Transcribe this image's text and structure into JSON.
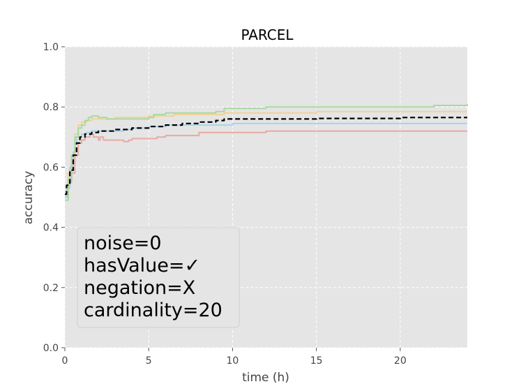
{
  "chart_data": {
    "type": "line",
    "title": "PARCEL",
    "xlabel": "time (h)",
    "ylabel": "accuracy",
    "xlim": [
      0,
      24
    ],
    "ylim": [
      0.0,
      1.0
    ],
    "xticks": [
      0,
      5,
      10,
      15,
      20
    ],
    "yticks": [
      0.0,
      0.2,
      0.4,
      0.6,
      0.8,
      1.0
    ],
    "xtick_labels": [
      "0",
      "5",
      "10",
      "15",
      "20"
    ],
    "ytick_labels": [
      "0.0",
      "0.2",
      "0.4",
      "0.6",
      "0.8",
      "1.0"
    ],
    "grid": true,
    "style": "ggplot",
    "annotation": [
      "noise=0",
      "hasValue=✓",
      "negation=X",
      "cardinality=20"
    ],
    "series": [
      {
        "color": "#e8a09a",
        "opacity": 0.85,
        "dashed": false,
        "x": [
          0,
          0.2,
          0.4,
          0.6,
          0.8,
          1.0,
          1.2,
          1.5,
          1.7,
          2.0,
          2.1,
          2.3,
          3.0,
          3.5,
          3.8,
          4.0,
          5.0,
          5.5,
          6.0,
          7.0,
          7.9,
          8.0,
          10.0,
          12.0,
          24.0
        ],
        "y": [
          0.5,
          0.55,
          0.58,
          0.64,
          0.68,
          0.69,
          0.7,
          0.71,
          0.7,
          0.69,
          0.7,
          0.69,
          0.69,
          0.685,
          0.69,
          0.695,
          0.695,
          0.7,
          0.705,
          0.705,
          0.705,
          0.715,
          0.715,
          0.72,
          0.72
        ]
      },
      {
        "color": "#9fd0ef",
        "opacity": 0.85,
        "dashed": false,
        "x": [
          0,
          0.1,
          0.3,
          0.5,
          0.6,
          0.7,
          0.9,
          1.0,
          1.3,
          1.6,
          2.0,
          2.5,
          3.5,
          4.0,
          5.0,
          6.0,
          8.0,
          10.0,
          15.0,
          24.0
        ],
        "y": [
          0.5,
          0.53,
          0.6,
          0.65,
          0.68,
          0.7,
          0.7,
          0.71,
          0.715,
          0.72,
          0.72,
          0.72,
          0.725,
          0.73,
          0.735,
          0.74,
          0.74,
          0.745,
          0.745,
          0.745
        ]
      },
      {
        "color": "#f5cf8a",
        "opacity": 0.85,
        "dashed": false,
        "x": [
          0,
          0.2,
          0.4,
          0.6,
          0.8,
          1.0,
          1.3,
          1.6,
          2.0,
          3.0,
          4.0,
          5.0,
          5.5,
          6.5,
          8.0,
          9.5,
          12.0,
          15.0,
          24.0
        ],
        "y": [
          0.52,
          0.58,
          0.64,
          0.71,
          0.74,
          0.75,
          0.755,
          0.76,
          0.76,
          0.765,
          0.765,
          0.77,
          0.77,
          0.775,
          0.775,
          0.78,
          0.78,
          0.785,
          0.785
        ]
      },
      {
        "color": "#a2d89a",
        "opacity": 0.9,
        "dashed": false,
        "x": [
          0,
          0.2,
          0.4,
          0.6,
          0.8,
          1.0,
          1.2,
          1.4,
          1.6,
          2.0,
          2.5,
          3.0,
          4.0,
          5.0,
          5.3,
          6.0,
          7.0,
          9.0,
          9.5,
          12.0,
          20.0,
          22.0,
          24.0
        ],
        "y": [
          0.49,
          0.56,
          0.64,
          0.7,
          0.73,
          0.74,
          0.755,
          0.765,
          0.77,
          0.765,
          0.76,
          0.76,
          0.76,
          0.765,
          0.775,
          0.78,
          0.78,
          0.785,
          0.795,
          0.8,
          0.8,
          0.805,
          0.81
        ]
      },
      {
        "color": "#000000",
        "opacity": 1,
        "dashed": true,
        "x": [
          0,
          0.1,
          0.3,
          0.5,
          0.7,
          0.9,
          1.2,
          1.6,
          2.0,
          3.0,
          4.0,
          5.0,
          6.0,
          7.0,
          8.0,
          9.0,
          9.5,
          12.0,
          15.0,
          20.0,
          24.0
        ],
        "y": [
          0.51,
          0.54,
          0.59,
          0.64,
          0.68,
          0.7,
          0.71,
          0.715,
          0.72,
          0.725,
          0.73,
          0.735,
          0.74,
          0.745,
          0.75,
          0.755,
          0.76,
          0.76,
          0.762,
          0.765,
          0.765
        ]
      }
    ]
  }
}
